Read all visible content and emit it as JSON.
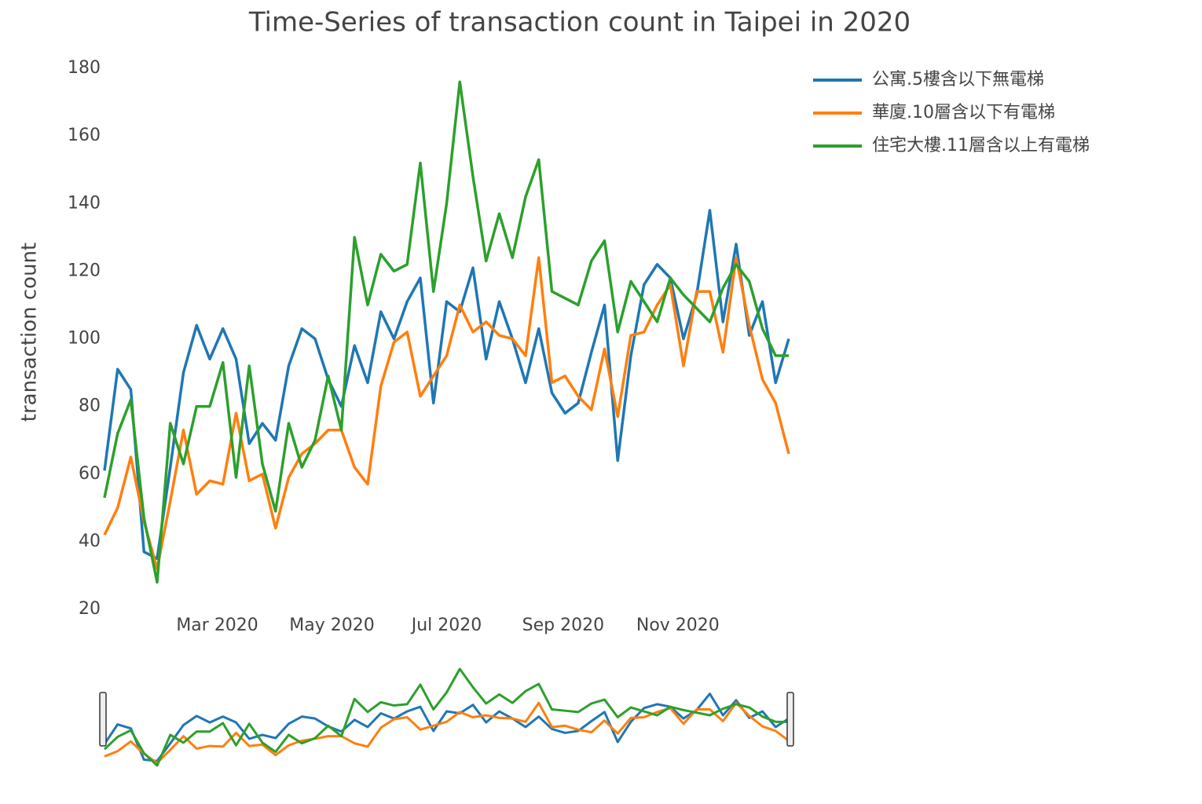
{
  "chart_data": {
    "type": "line",
    "title": "Time-Series of transaction count in Taipei in 2020",
    "y_label": "transaction count",
    "x": [
      "2020-01-01",
      "2020-01-08",
      "2020-01-15",
      "2020-01-22",
      "2020-01-29",
      "2020-02-05",
      "2020-02-12",
      "2020-02-19",
      "2020-02-26",
      "2020-03-04",
      "2020-03-11",
      "2020-03-18",
      "2020-03-25",
      "2020-04-01",
      "2020-04-08",
      "2020-04-15",
      "2020-04-22",
      "2020-04-29",
      "2020-05-06",
      "2020-05-13",
      "2020-05-20",
      "2020-05-27",
      "2020-06-03",
      "2020-06-10",
      "2020-06-17",
      "2020-06-24",
      "2020-07-01",
      "2020-07-08",
      "2020-07-15",
      "2020-07-22",
      "2020-07-29",
      "2020-08-05",
      "2020-08-12",
      "2020-08-19",
      "2020-08-26",
      "2020-09-02",
      "2020-09-09",
      "2020-09-16",
      "2020-09-23",
      "2020-09-30",
      "2020-10-07",
      "2020-10-14",
      "2020-10-21",
      "2020-10-28",
      "2020-11-04",
      "2020-11-11",
      "2020-11-18",
      "2020-11-25",
      "2020-12-02",
      "2020-12-09",
      "2020-12-16",
      "2020-12-23",
      "2020-12-30"
    ],
    "series": [
      {
        "name": "公寓.5樓含以下無電梯",
        "color": "#1f77b4",
        "values": [
          61,
          91,
          85,
          37,
          35,
          62,
          90,
          104,
          94,
          103,
          94,
          69,
          75,
          70,
          92,
          103,
          100,
          88,
          80,
          98,
          87,
          108,
          100,
          111,
          118,
          81,
          111,
          108,
          121,
          94,
          111,
          100,
          87,
          103,
          84,
          78,
          81,
          96,
          110,
          64,
          95,
          116,
          122,
          118,
          100,
          113,
          138,
          105,
          128,
          101,
          111,
          87,
          100
        ]
      },
      {
        "name": "華廈.10層含以下有電梯",
        "color": "#ff7f0e",
        "values": [
          42,
          50,
          65,
          46,
          32,
          52,
          73,
          54,
          58,
          57,
          78,
          58,
          60,
          44,
          59,
          66,
          69,
          73,
          73,
          62,
          57,
          86,
          99,
          102,
          83,
          89,
          95,
          110,
          102,
          105,
          101,
          100,
          95,
          124,
          87,
          89,
          83,
          79,
          97,
          77,
          101,
          102,
          110,
          116,
          92,
          114,
          114,
          96,
          124,
          104,
          88,
          81,
          66
        ]
      },
      {
        "name": "住宅大樓.11層含以上有電梯",
        "color": "#2ca02c",
        "values": [
          53,
          72,
          82,
          47,
          28,
          75,
          63,
          80,
          80,
          93,
          59,
          92,
          63,
          49,
          75,
          62,
          70,
          89,
          73,
          130,
          110,
          125,
          120,
          122,
          152,
          114,
          140,
          176,
          148,
          123,
          137,
          124,
          142,
          153,
          114,
          112,
          110,
          123,
          129,
          102,
          117,
          111,
          105,
          118,
          113,
          109,
          105,
          115,
          122,
          117,
          103,
          95,
          95
        ]
      }
    ],
    "xlim": [
      "2020-01-01",
      "2020-12-30"
    ],
    "xticks": [
      {
        "value": "2020-03-01",
        "label": "Mar 2020"
      },
      {
        "value": "2020-05-01",
        "label": "May 2020"
      },
      {
        "value": "2020-07-01",
        "label": "Jul 2020"
      },
      {
        "value": "2020-09-01",
        "label": "Sep 2020"
      },
      {
        "value": "2020-11-01",
        "label": "Nov 2020"
      }
    ],
    "ylim": [
      20,
      180
    ],
    "yticks": [
      20,
      40,
      60,
      80,
      100,
      120,
      140,
      160,
      180
    ],
    "grid": false,
    "legend": "right",
    "range_slider": true
  }
}
